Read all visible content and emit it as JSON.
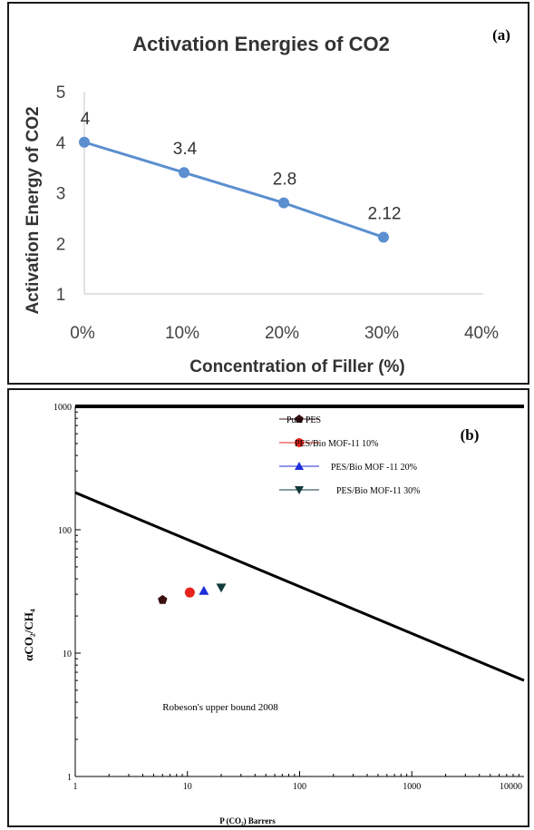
{
  "chart_data": [
    {
      "type": "line",
      "panel_label": "(a)",
      "title": "Activation Energies of CO2",
      "xlabel": "Concentration of Filler  (%)",
      "ylabel": "Activation  Energy of CO2",
      "x_ticks": [
        "0%",
        "10%",
        "20%",
        "30%",
        "40%"
      ],
      "y_ticks": [
        "1",
        "2",
        "3",
        "4",
        "5"
      ],
      "xlim": [
        0,
        40
      ],
      "ylim": [
        1,
        5
      ],
      "grid": false,
      "legend": "none",
      "series": [
        {
          "color": "#5b8fd0",
          "x": [
            0,
            10,
            20,
            30
          ],
          "values": [
            4,
            3.4,
            2.8,
            2.12
          ],
          "labels": [
            "4",
            "3.4",
            "2.8",
            "2.12"
          ]
        }
      ]
    },
    {
      "type": "scatter",
      "panel_label": "(b)",
      "xlabel": "P (CO₂) Barrers",
      "ylabel": "αCO₂/CH₄",
      "x_scale": "log",
      "y_scale": "log",
      "xlim": [
        1,
        10000
      ],
      "ylim": [
        1,
        1000
      ],
      "x_ticks": [
        "1",
        "10",
        "100",
        "1000",
        "10000"
      ],
      "y_ticks": [
        "1",
        "10",
        "100",
        "1000"
      ],
      "legend": "top-right",
      "annotation": "Robeson's upper bound 2008",
      "upper_bound_line": {
        "x": [
          1,
          10000
        ],
        "y": [
          200,
          6
        ]
      },
      "series": [
        {
          "name": "Pure PES",
          "marker": "pentagon",
          "color": "#3a1010",
          "x": [
            6
          ],
          "y": [
            27
          ]
        },
        {
          "name": "PES/Bio MOF-11 10%",
          "marker": "circle",
          "color": "#e8231c",
          "x": [
            10.5
          ],
          "y": [
            31
          ]
        },
        {
          "name": "PES/Bio MOF -11  20%",
          "marker": "triangle-up",
          "color": "#1d2fd8",
          "x": [
            14
          ],
          "y": [
            32
          ]
        },
        {
          "name": "PES/Bio MOF-11  30%",
          "marker": "triangle-down",
          "color": "#123a3a",
          "x": [
            20
          ],
          "y": [
            34
          ]
        }
      ]
    }
  ]
}
